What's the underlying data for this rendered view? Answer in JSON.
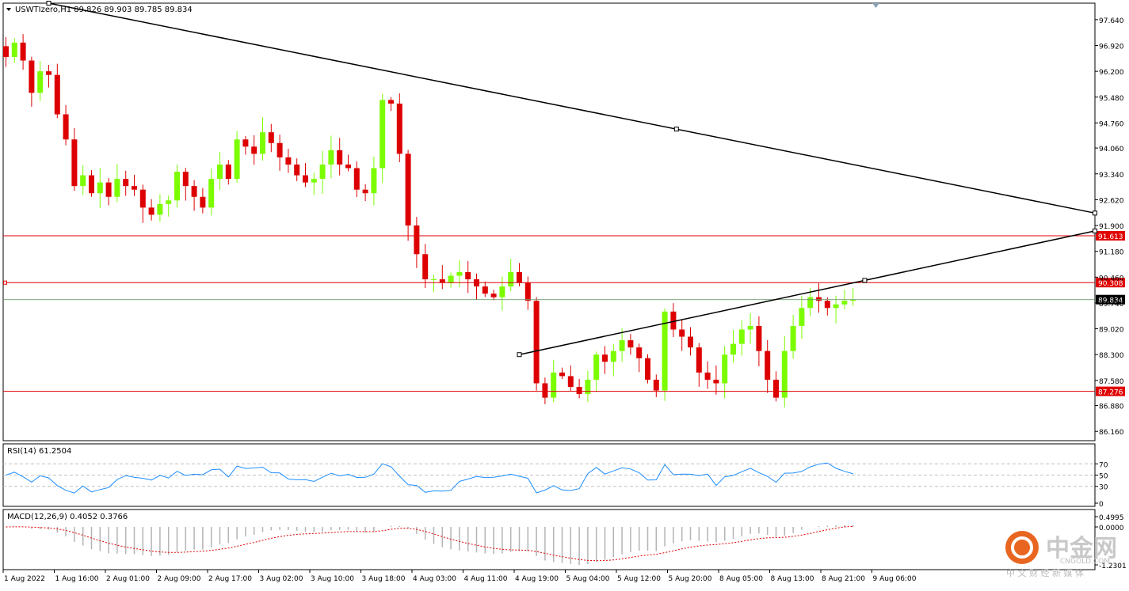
{
  "header": {
    "symbol_line": "USWTIzero,H1  89.826 89.903 89.785 89.834"
  },
  "colors": {
    "bull": "#7CFC00",
    "bear": "#DD0000",
    "level": "#E00000",
    "trend": "#000000",
    "rsi": "#1E8FFF",
    "macd_signal": "#E00000",
    "histogram": "#B4B4B4"
  },
  "chart_data": [
    {
      "type": "candlestick",
      "title": "USWTIzero,H1",
      "ohlc_header": {
        "open": 89.826,
        "high": 89.903,
        "low": 89.785,
        "close": 89.834
      },
      "ylim": [
        85.9,
        98.1
      ],
      "y_ticks": [
        "97.640",
        "96.920",
        "96.200",
        "95.480",
        "94.760",
        "94.060",
        "93.340",
        "92.620",
        "91.900",
        "91.180",
        "90.460",
        "89.740",
        "89.020",
        "88.300",
        "87.580",
        "86.880",
        "86.160"
      ],
      "x_ticks": [
        "1 Aug 2022",
        "1 Aug 16:00",
        "2 Aug 01:00",
        "2 Aug 09:00",
        "2 Aug 17:00",
        "3 Aug 02:00",
        "3 Aug 10:00",
        "3 Aug 18:00",
        "4 Aug 03:00",
        "4 Aug 11:00",
        "4 Aug 19:00",
        "5 Aug 04:00",
        "5 Aug 12:00",
        "5 Aug 20:00",
        "8 Aug 05:00",
        "8 Aug 13:00",
        "8 Aug 21:00",
        "9 Aug 06:00"
      ],
      "close_path": [
        96.6,
        97.0,
        96.5,
        95.6,
        96.2,
        96.1,
        95.0,
        94.3,
        93.0,
        93.3,
        92.8,
        93.1,
        92.7,
        93.2,
        93.0,
        92.9,
        92.4,
        92.2,
        92.5,
        92.6,
        93.4,
        93.0,
        92.7,
        92.4,
        93.2,
        93.6,
        93.2,
        94.3,
        94.1,
        93.9,
        94.5,
        94.2,
        93.8,
        93.6,
        93.3,
        93.1,
        93.2,
        93.6,
        94.0,
        93.6,
        93.5,
        92.9,
        92.8,
        93.5,
        95.4,
        95.3,
        93.9,
        91.9,
        91.1,
        90.4,
        90.4,
        90.3,
        90.5,
        90.6,
        90.4,
        90.2,
        90.0,
        89.9,
        90.2,
        90.6,
        90.3,
        89.8,
        87.5,
        87.1,
        87.8,
        87.7,
        87.4,
        87.2,
        87.6,
        88.3,
        88.1,
        88.4,
        88.7,
        88.5,
        88.2,
        87.6,
        87.3,
        89.5,
        89.0,
        88.8,
        88.5,
        87.8,
        87.6,
        87.5,
        88.3,
        88.6,
        89.0,
        89.1,
        88.4,
        87.6,
        87.1,
        88.4,
        89.1,
        89.6,
        89.9,
        89.8,
        89.6,
        89.7,
        89.8,
        89.834
      ],
      "levels": [
        {
          "label": "91.613",
          "value": 91.613
        },
        {
          "label": "90.308",
          "value": 90.308
        },
        {
          "label": "87.276",
          "value": 87.276
        }
      ],
      "current_price": {
        "label": "89.834",
        "value": 89.834
      },
      "trendlines": [
        {
          "name": "descending-trendline",
          "from": {
            "index": 5,
            "value": 98.1
          },
          "to": {
            "index": 99,
            "value": 93.6
          }
        },
        {
          "name": "ascending-trendline",
          "from": {
            "index": 60,
            "value": 88.3
          },
          "to": {
            "index": 99,
            "value": 90.3
          }
        }
      ]
    },
    {
      "type": "line",
      "title": "RSI(14) 61.2504",
      "ylim": [
        0,
        100
      ],
      "y_ticks": [
        "70",
        "50",
        "30",
        "0"
      ],
      "levels": [
        70,
        50,
        30
      ]
    },
    {
      "type": "bar+line",
      "title": "MACD(12,26,9) 0.4052 0.3766",
      "y_ticks": [
        "0.4995",
        "0.0000",
        "-1.2301"
      ]
    }
  ],
  "watermark": {
    "brand": "中金网",
    "url": "CNGOLD.COM",
    "tagline": "中 文 财 经 新 媒 体"
  }
}
